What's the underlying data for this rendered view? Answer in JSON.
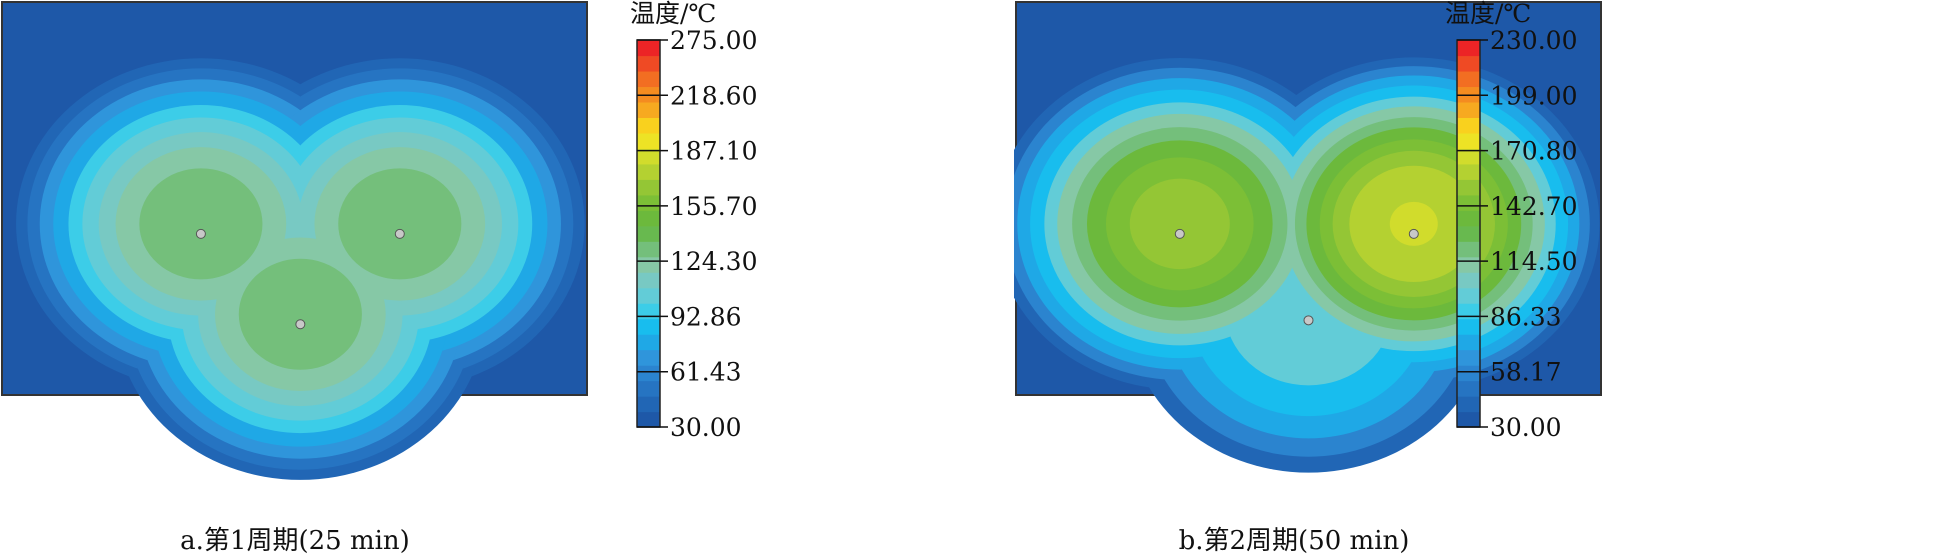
{
  "chart_data": [
    {
      "type": "heatmap",
      "caption": "a.第1周期(25 min)",
      "colorbar": {
        "title": "温度/℃",
        "min": 30.0,
        "max": 275.0,
        "ticks": [
          "275.00",
          "218.60",
          "187.10",
          "155.70",
          "124.30",
          "92.86",
          "61.43",
          "30.00"
        ]
      },
      "background_value": 30.0,
      "sources": [
        {
          "x": 0.34,
          "y": 0.59,
          "peak": 150
        },
        {
          "x": 0.68,
          "y": 0.59,
          "peak": 150
        },
        {
          "x": 0.51,
          "y": 0.82,
          "peak": 150
        }
      ],
      "grid": false
    },
    {
      "type": "heatmap",
      "caption": "b.第2周期(50 min)",
      "colorbar": {
        "title": "温度/℃",
        "min": 30.0,
        "max": 230.0,
        "ticks": [
          "230.00",
          "199.00",
          "170.80",
          "142.70",
          "114.50",
          "86.33",
          "58.17",
          "30.00"
        ]
      },
      "background_value": 30.0,
      "sources": [
        {
          "x": 0.28,
          "y": 0.59,
          "peak": 155
        },
        {
          "x": 0.68,
          "y": 0.59,
          "peak": 168
        },
        {
          "x": 0.5,
          "y": 0.81,
          "peak": 110
        }
      ],
      "grid": false
    }
  ]
}
